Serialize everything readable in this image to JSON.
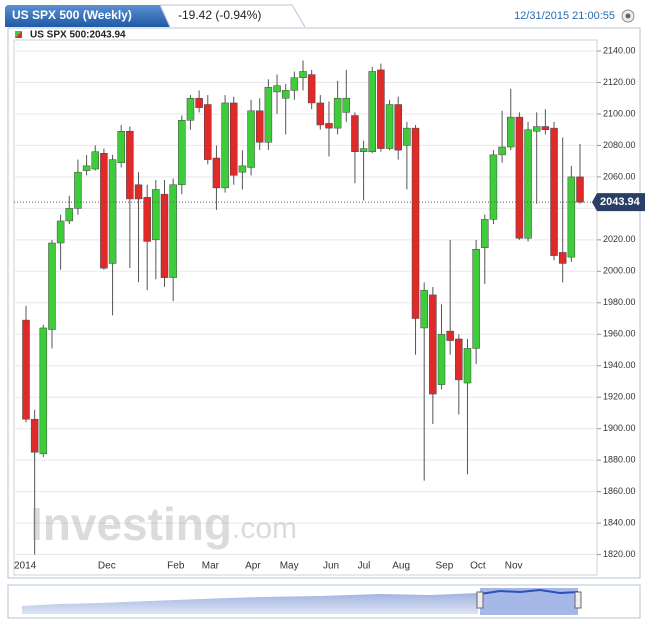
{
  "chart_data": {
    "type": "candlestick",
    "title": "US SPX 500 (Weekly)",
    "change": "-19.42 (-0.94%)",
    "datetime": "12/31/2015 21:00:55",
    "legend": "US SPX 500:2043.94",
    "watermark": [
      "Investing",
      ".com"
    ],
    "last_price": 2043.94,
    "up_color": "#3fcc3a",
    "down_color": "#e02a2a",
    "categories": [
      "2014",
      null,
      null,
      null,
      null,
      null,
      null,
      null,
      null,
      "Dec",
      null,
      null,
      null,
      null,
      null,
      null,
      null,
      "Feb",
      null,
      null,
      null,
      "Mar",
      null,
      null,
      null,
      null,
      "Apr",
      null,
      null,
      null,
      "May",
      null,
      null,
      null,
      null,
      "Jun",
      null,
      null,
      null,
      "Jul",
      null,
      null,
      null,
      "Aug",
      null,
      null,
      null,
      null,
      "Sep",
      null,
      null,
      null,
      "Oct",
      null,
      null,
      null,
      "Nov",
      null,
      null,
      null,
      null,
      null,
      null,
      null,
      null
    ],
    "open": [
      1969,
      1906,
      1884,
      1963,
      2018,
      2032,
      2040,
      2064,
      2065,
      2075,
      2005,
      2069,
      2089,
      2055,
      2047,
      2020,
      2049,
      1996,
      2055,
      2096,
      2110,
      2106,
      2072,
      2053,
      2107,
      2063,
      2066,
      2102,
      2082,
      2114,
      2110,
      2115,
      2123,
      2125,
      2107,
      2094,
      2091,
      2101,
      2099,
      2076,
      2076,
      2128,
      2078,
      2106,
      2080,
      2091,
      1964,
      1985,
      1928,
      1962,
      1957,
      1929,
      1951,
      2015,
      2033,
      2074,
      2079,
      2098,
      2021,
      2089,
      2092,
      2091,
      2012,
      2009,
      2060
    ],
    "high": [
      1978,
      1912,
      1966,
      2020,
      2036,
      2048,
      2071,
      2074,
      2080,
      2078,
      2074,
      2093,
      2092,
      2063,
      2055,
      2058,
      2058,
      2059,
      2099,
      2112,
      2115,
      2112,
      2080,
      2112,
      2111,
      2077,
      2109,
      2110,
      2122,
      2125,
      2119,
      2127,
      2134,
      2128,
      2112,
      2108,
      2121,
      2128,
      2101,
      2083,
      2130,
      2132,
      2109,
      2111,
      2095,
      2093,
      1993,
      1990,
      1979,
      2020,
      1960,
      1957,
      2020,
      2036,
      2077,
      2102,
      2116,
      2101,
      2095,
      2101,
      2103,
      2095,
      2085,
      2067,
      2081
    ],
    "low": [
      1904,
      1820,
      1882,
      1951,
      2001,
      2030,
      2036,
      2061,
      2064,
      2001,
      1972,
      2066,
      2002,
      1993,
      1988,
      1995,
      1990,
      1981,
      2049,
      2090,
      2101,
      2068,
      2039,
      2050,
      2055,
      2052,
      2061,
      2077,
      2077,
      2100,
      2087,
      2109,
      2115,
      2103,
      2090,
      2073,
      2087,
      2095,
      2056,
      2045,
      2075,
      2076,
      2077,
      2071,
      2052,
      1947,
      1867,
      1903,
      1925,
      1947,
      1909,
      1871,
      1941,
      1992,
      2030,
      2069,
      2077,
      2020,
      2019,
      2043,
      2087,
      2007,
      1993,
      2006,
      2043
    ],
    "close": [
      1906,
      1885,
      1964,
      2018,
      2032,
      2040,
      2063,
      2067,
      2076,
      2002,
      2071,
      2089,
      2046,
      2046,
      2019,
      2052,
      1996,
      2055,
      2096,
      2110,
      2104,
      2071,
      2053,
      2107,
      2061,
      2067,
      2102,
      2082,
      2117,
      2118,
      2115,
      2123,
      2127,
      2107,
      2093,
      2091,
      2110,
      2110,
      2076,
      2078,
      2127,
      2078,
      2106,
      2077,
      2091,
      1970,
      1988,
      1922,
      1960,
      1956,
      1931,
      1951,
      2014,
      2033,
      2074,
      2079,
      2098,
      2021,
      2090,
      2092,
      2090,
      2010,
      2005,
      2060,
      2043.94
    ],
    "ylim": [
      1807,
      2147
    ],
    "yticks": [
      {
        "value": 1820,
        "label": "1820.00"
      },
      {
        "value": 1840,
        "label": "1840.00"
      },
      {
        "value": 1860,
        "label": "1860.00"
      },
      {
        "value": 1880,
        "label": "1880.00"
      },
      {
        "value": 1900,
        "label": "1900.00"
      },
      {
        "value": 1920,
        "label": "1920.00"
      },
      {
        "value": 1940,
        "label": "1940.00"
      },
      {
        "value": 1960,
        "label": "1960.00"
      },
      {
        "value": 1980,
        "label": "1980.00"
      },
      {
        "value": 2000,
        "label": "2000.00"
      },
      {
        "value": 2020,
        "label": "2020.00"
      },
      {
        "value": 2040,
        "label": "2040.00"
      },
      {
        "value": 2060,
        "label": "2060.00"
      },
      {
        "value": 2080,
        "label": "2080.00"
      },
      {
        "value": 2100,
        "label": "2100.00"
      },
      {
        "value": 2120,
        "label": "2120.00"
      },
      {
        "value": 2140,
        "label": "2140.00"
      }
    ],
    "grid": true
  }
}
